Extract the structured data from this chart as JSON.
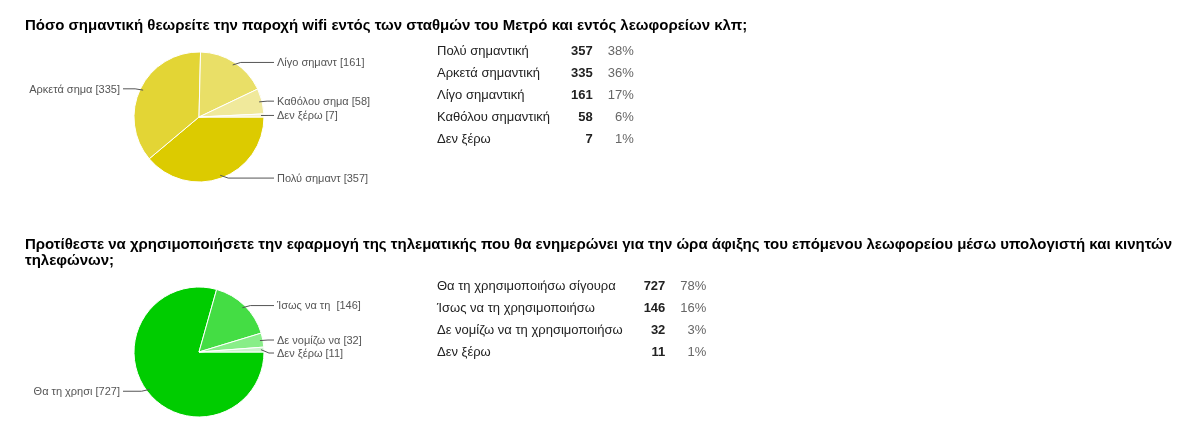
{
  "chart_data": [
    {
      "type": "pie",
      "title": "Πόσο σημαντική θεωρείτε την παροχή wifi εντός των σταθμών του Μετρό και εντός λεωφορείων κλπ;",
      "categories": [
        "Πολύ σημαντ [357]",
        "Αρκετά σημα [335]",
        "Λίγο σημαντ [161]",
        "Καθόλου σημα [58]",
        "Δεν ξέρω [7]"
      ],
      "values": [
        357,
        335,
        161,
        58,
        7
      ],
      "colors": [
        "#dccb00",
        "#e3d535",
        "#e9df67",
        "#f0e99b",
        "#f7f3cd"
      ]
    },
    {
      "type": "other",
      "categories": [
        "Πολύ σημαντική",
        "Αρκετά σημαντική",
        "Λίγο σημαντική",
        "Καθόλου σημαντική",
        "Δεν ξέρω"
      ],
      "values": [
        357,
        335,
        161,
        58,
        7
      ],
      "data_labels": true,
      "annotations": [
        "38%",
        "36%",
        "17%",
        "6%",
        "1%"
      ]
    },
    {
      "type": "pie",
      "title": "Προτίθεστε να χρησιμοποιήσετε την εφαρμογή της τηλεματικής που θα ενημερώνει για την ώρα άφιξης του επόμενου λεωφορείου μέσω υπολογιστή και κινητών τηλεφώνων;",
      "categories": [
        "Θα τη χρησι [727]",
        "Ίσως να τη  [146]",
        "Δε νομίζω να [32]",
        "Δεν ξέρω [11]"
      ],
      "values": [
        727,
        146,
        32,
        11
      ],
      "colors": [
        "#00cc00",
        "#44dd44",
        "#88ee88",
        "#ccf5cc"
      ]
    },
    {
      "type": "other",
      "categories": [
        "Θα τη χρησιμοποιήσω σίγουρα",
        "Ίσως να τη χρησιμοποιήσω",
        "Δε νομίζω να τη χρησιμοποιήσω",
        "Δεν ξέρω"
      ],
      "values": [
        727,
        146,
        32,
        11
      ],
      "data_labels": true,
      "annotations": [
        "78%",
        "16%",
        "3%",
        "1%"
      ]
    }
  ]
}
